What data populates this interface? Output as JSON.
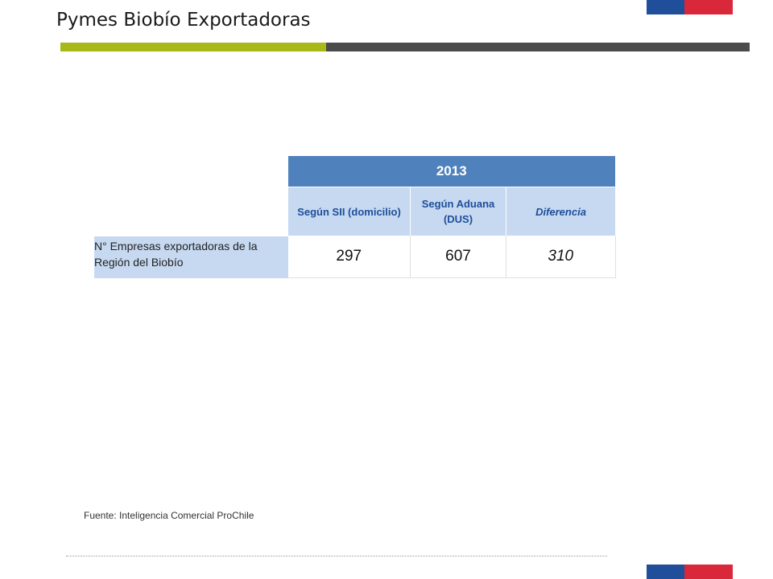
{
  "title": "Pymes Biobío Exportadoras",
  "table": {
    "year": "2013",
    "headers": [
      "Según SII (domicilio)",
      "Según Aduana (DUS)",
      "Diferencia"
    ],
    "row_label": "N° Empresas exportadoras de la Región del Biobío",
    "values": [
      "297",
      "607",
      "310"
    ]
  },
  "source": "Fuente: Inteligencia Comercial ProChile",
  "colors": {
    "header_blue": "#4f81bd",
    "light_blue": "#c6d9f1",
    "accent_green": "#a8b816",
    "dark_gray": "#4b4b4b",
    "flag_blue": "#1f4e9a",
    "flag_red": "#d9283a"
  }
}
